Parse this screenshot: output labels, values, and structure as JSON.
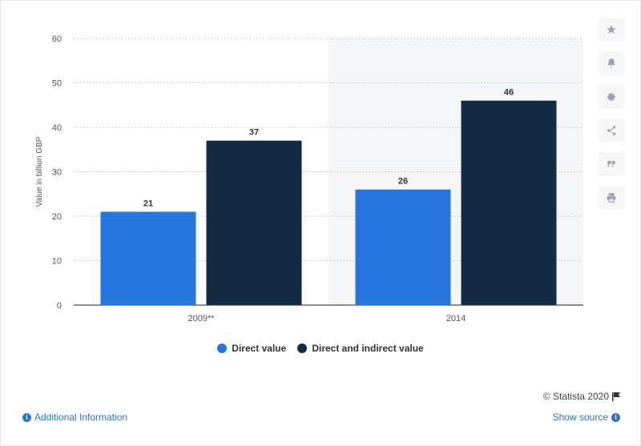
{
  "chart_data": {
    "type": "bar",
    "categories": [
      "2009**",
      "2014"
    ],
    "series": [
      {
        "name": "Direct value",
        "values": [
          21,
          26
        ],
        "color": "#2876dd"
      },
      {
        "name": "Direct and indirect value",
        "values": [
          37,
          46
        ],
        "color": "#132a43"
      }
    ],
    "ylabel": "Value in billion GBP",
    "ylim": [
      0,
      60
    ],
    "yticks": [
      0,
      10,
      20,
      30,
      40,
      50,
      60
    ],
    "grid": true,
    "legend_position": "bottom"
  },
  "footer": {
    "additional_info": "Additional Information",
    "show_source": "Show source",
    "credit": "© Statista 2020"
  },
  "sidebar_icons": [
    "star-icon",
    "bell-icon",
    "gear-icon",
    "share-icon",
    "quote-icon",
    "print-icon"
  ]
}
